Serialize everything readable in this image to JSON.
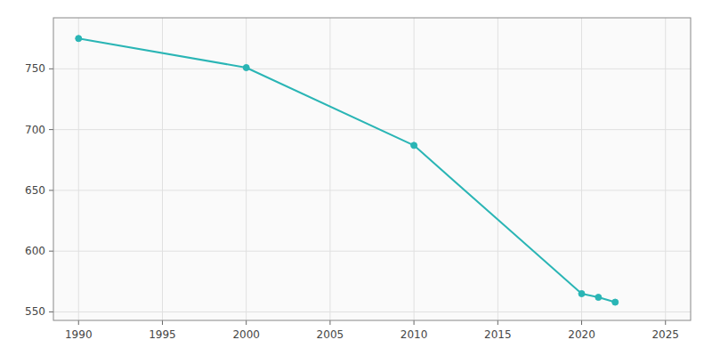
{
  "chart_data": {
    "type": "line",
    "x": [
      1990,
      2000,
      2010,
      2020,
      2021,
      2022
    ],
    "values": [
      775,
      751,
      687,
      565,
      562,
      558
    ],
    "color": "#2ab5b5",
    "marker": "circle",
    "xlim": [
      1988.5,
      2026.5
    ],
    "ylim": [
      543,
      792
    ],
    "xticks": [
      1990,
      1995,
      2000,
      2005,
      2010,
      2015,
      2020,
      2025
    ],
    "yticks": [
      550,
      600,
      650,
      700,
      750
    ],
    "grid": true
  }
}
